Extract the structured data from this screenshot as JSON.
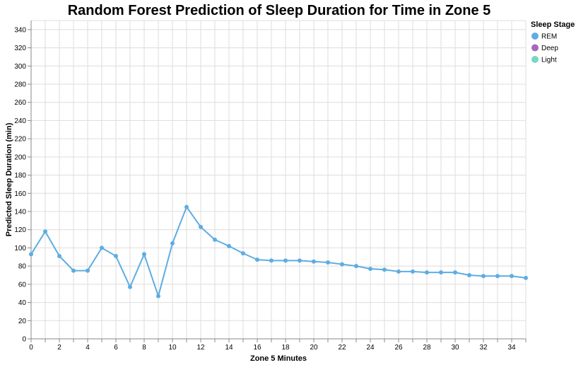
{
  "chart_data": {
    "type": "line",
    "title": "Random Forest Prediction of Sleep Duration for Time in Zone 5",
    "xlabel": "Zone 5 Minutes",
    "ylabel": "Predicted Sleep Duration (min)",
    "xlim": [
      0,
      35
    ],
    "ylim": [
      0,
      350
    ],
    "x_ticks": [
      0,
      2,
      4,
      6,
      8,
      10,
      12,
      14,
      16,
      18,
      20,
      22,
      24,
      26,
      28,
      30,
      32,
      34
    ],
    "y_ticks": [
      0,
      20,
      40,
      60,
      80,
      100,
      120,
      140,
      160,
      180,
      200,
      220,
      240,
      260,
      280,
      300,
      320,
      340
    ],
    "grid": true,
    "legend": {
      "title": "Sleep Stage",
      "placement": "top-right",
      "entries": [
        {
          "label": "REM",
          "color": "#5dade2"
        },
        {
          "label": "Deep",
          "color": "#a569bd"
        },
        {
          "label": "Light",
          "color": "#76d7c4"
        }
      ]
    },
    "series": [
      {
        "name": "REM",
        "color": "#5dade2",
        "x": [
          0,
          1,
          2,
          3,
          4,
          5,
          6,
          7,
          8,
          9,
          10,
          11,
          12,
          13,
          14,
          15,
          16,
          17,
          18,
          19,
          20,
          21,
          22,
          23,
          24,
          25,
          26,
          27,
          28,
          29,
          30,
          31,
          32,
          33,
          34,
          35
        ],
        "values": [
          93,
          118,
          91,
          75,
          75,
          100,
          91,
          57,
          93,
          47,
          105,
          145,
          123,
          109,
          102,
          94,
          87,
          86,
          86,
          86,
          85,
          84,
          82,
          80,
          77,
          76,
          74,
          74,
          73,
          73,
          73,
          70,
          69,
          69,
          69,
          67
        ]
      }
    ]
  }
}
